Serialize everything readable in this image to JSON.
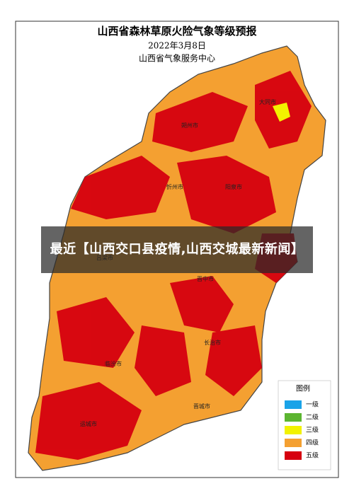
{
  "header": {
    "title": "山西省森林草原火险气象等级预报",
    "date": "2022年3月8日",
    "issuer": "山西省气象服务中心"
  },
  "cities": [
    {
      "label": "大同市"
    },
    {
      "label": "朔州市"
    },
    {
      "label": "忻州市"
    },
    {
      "label": "阳泉市"
    },
    {
      "label": "吕梁市"
    },
    {
      "label": "晋中市"
    },
    {
      "label": "长治市"
    },
    {
      "label": "临汾市"
    },
    {
      "label": "晋城市"
    },
    {
      "label": "运城市"
    }
  ],
  "legend": {
    "title": "图例",
    "items": [
      {
        "name": "一级",
        "color": "#1aa3e8"
      },
      {
        "name": "二级",
        "color": "#5cb531"
      },
      {
        "name": "三级",
        "color": "#f2f200"
      },
      {
        "name": "四级",
        "color": "#f4a031"
      },
      {
        "name": "五级",
        "color": "#d6000f"
      }
    ]
  },
  "overlay": {
    "text": "最近【山西交口县疫情,山西交城最新新闻】"
  }
}
